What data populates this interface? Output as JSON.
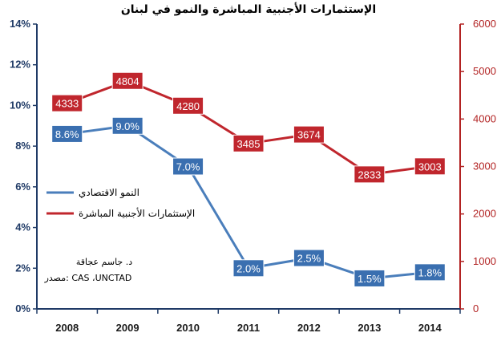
{
  "chart_data": {
    "type": "line",
    "title": "الإستثمارات الأجنبية المباشرة والنمو في لبنان",
    "categories": [
      "2008",
      "2009",
      "2010",
      "2011",
      "2012",
      "2013",
      "2014"
    ],
    "y_left": {
      "range": [
        0,
        14
      ],
      "ticks": [
        0,
        2,
        4,
        6,
        8,
        10,
        12,
        14
      ],
      "tick_labels": [
        "0%",
        "2%",
        "4%",
        "6%",
        "8%",
        "10%",
        "12%",
        "14%"
      ]
    },
    "y_right": {
      "range": [
        0,
        6000
      ],
      "ticks": [
        0,
        1000,
        2000,
        3000,
        4000,
        5000,
        6000
      ],
      "tick_labels": [
        "0",
        "1000",
        "2000",
        "3000",
        "4000",
        "5000",
        "6000"
      ]
    },
    "series": [
      {
        "name": "النمو الاقتصادي",
        "axis": "left",
        "color": "#4a7ebb",
        "label_fill": "#3a6fb0",
        "values": [
          8.6,
          9.0,
          7.0,
          2.0,
          2.5,
          1.5,
          1.8
        ],
        "data_labels": [
          "8.6%",
          "9.0%",
          "7.0%",
          "2.0%",
          "2.5%",
          "1.5%",
          "1.8%"
        ]
      },
      {
        "name": "الإستثمارات الأجنبية المباشرة",
        "axis": "right",
        "color": "#c0262d",
        "label_fill": "#c0262d",
        "values": [
          4333,
          4804,
          4280,
          3485,
          3674,
          2833,
          3003
        ],
        "data_labels": [
          "4333",
          "4804",
          "4280",
          "3485",
          "3674",
          "2833",
          "3003"
        ]
      }
    ],
    "legend_position": "left-middle",
    "grid": false,
    "annotation": {
      "line1": "د. جاسم عجاقة",
      "line2": "مصدر: CAS ،UNCTAD"
    }
  }
}
